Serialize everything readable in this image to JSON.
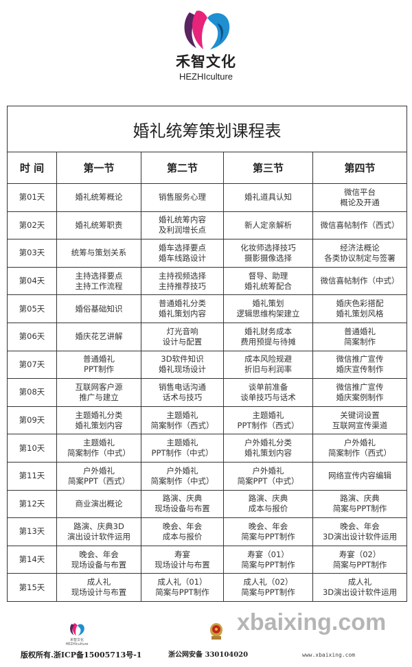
{
  "brand": {
    "name_cn": "禾智文化",
    "name_en": "HEZHIculture",
    "colors": {
      "pink": "#e8237a",
      "blue": "#1e8fd0",
      "purple": "#5a2460"
    }
  },
  "table": {
    "title": "婚礼统筹策划课程表",
    "headers": [
      "时 间",
      "第一节",
      "第二节",
      "第三节",
      "第四节"
    ],
    "rows": [
      [
        "第01天",
        "婚礼统筹概论",
        "销售服务心理",
        "婚礼道具认知",
        "微信平台\n概论及开通"
      ],
      [
        "第02天",
        "婚礼统筹职责",
        "婚礼统筹内容\n及利润增长点",
        "新人定亲解析",
        "微信喜帖制作（西式）"
      ],
      [
        "第03天",
        "统筹与策划关系",
        "婚车选择要点\n婚车线路设计",
        "化妆师选择技巧\n摄影摄像选择",
        "经济法概论\n各类协议制定与签署"
      ],
      [
        "第04天",
        "主持选择要点\n主持工作流程",
        "主持视频选择\n主持推荐技巧",
        "督导、助理\n婚礼统筹配合",
        "微信喜帖制作（中式）"
      ],
      [
        "第05天",
        "婚俗基础知识",
        "普通婚礼分类\n婚礼策划内容",
        "婚礼策划\n逻辑思维构架建立",
        "婚庆色彩搭配\n婚礼策划风格"
      ],
      [
        "第06天",
        "婚庆花艺讲解",
        "灯光音响\n设计与配置",
        "婚礼财务成本\n费用预提与待摊",
        "普通婚礼\n简案制作"
      ],
      [
        "第07天",
        "普通婚礼\nPPT制作",
        "3D软件知识\n婚礼现场设计",
        "成本风险规避\n折旧与利润率",
        "微信推广宣传\n婚庆宣传制作"
      ],
      [
        "第08天",
        "互联网客户源\n推广与建立",
        "销售电话沟通\n话术与技巧",
        "谈单前准备\n谈单技巧与话术",
        "微信推广宣传\n婚庆案例制作"
      ],
      [
        "第09天",
        "主题婚礼分类\n婚礼策划内容",
        "主题婚礼\n简案制作（西式）",
        "主题婚礼\nPPT制作（西式）",
        "关键词设置\n互联网宣传渠道"
      ],
      [
        "第10天",
        "主题婚礼\n简案制作（中式）",
        "主题婚礼\nPPT制作（中式）",
        "户外婚礼分类\n婚礼策划内容",
        "户外婚礼\n简案制作（西式）"
      ],
      [
        "第11天",
        "户外婚礼\n简案PPT（西式）",
        "户外婚礼\n简案制作（中式）",
        "户外婚礼\n简案PPT（中式）",
        "网络宣传内容编辑"
      ],
      [
        "第12天",
        "商业演出概论",
        "路演、庆典\n现场设备与布置",
        "路演、庆典\n成本与报价",
        "路演、庆典\n简案与PPT制作"
      ],
      [
        "第13天",
        "路演、庆典3D\n演出设计软件运用",
        "晚会、年会\n成本与报价",
        "晚会、年会\n简案与PPT制作",
        "晚会、年会\n3D演出设计软件运用"
      ],
      [
        "第14天",
        "晚会、年会\n现场设备与布置",
        "寿宴\n现场设计与布置",
        "寿宴（01）\n简案与PPT制作",
        "寿宴（02）\n简案与PPT制作"
      ],
      [
        "第15天",
        "成人礼\n现场设计与布置",
        "成人礼（01）\n简案与PPT制作",
        "成人礼（02）\n简案与PPT制作",
        "成人礼\n3D演出设计软件运用"
      ]
    ]
  },
  "footer": {
    "logo_text": "禾智文化 HEZHIculture",
    "icp": "版权所有.浙ICP备15005713号-1",
    "police": "浙公网安备 330104020",
    "watermark": "xbaixing.com",
    "watermark_url": "www.xbaixing.com"
  }
}
